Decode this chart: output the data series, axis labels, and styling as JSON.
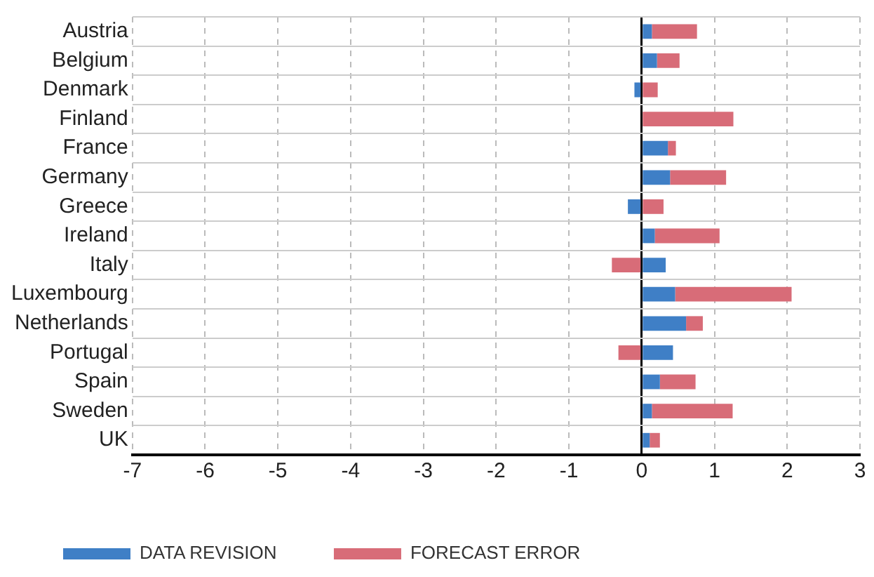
{
  "chart_data": {
    "type": "bar",
    "orientation": "horizontal",
    "stacked": true,
    "categories": [
      "Austria",
      "Belgium",
      "Denmark",
      "Finland",
      "France",
      "Germany",
      "Greece",
      "Ireland",
      "Italy",
      "Luxembourg",
      "Netherlands",
      "Portugal",
      "Spain",
      "Sweden",
      "UK"
    ],
    "series": [
      {
        "name": "DATA REVISION",
        "color": "#3f7fc6",
        "values": [
          0.14,
          0.21,
          -0.1,
          0,
          0.36,
          0.39,
          -0.19,
          0.18,
          0.33,
          0.46,
          0.61,
          0.43,
          0.25,
          0.14,
          0.11
        ]
      },
      {
        "name": "FORECAST ERROR",
        "color": "#d86c78",
        "values": [
          0.62,
          0.31,
          0.22,
          1.26,
          0.11,
          0.77,
          0.3,
          0.89,
          -0.41,
          1.6,
          0.23,
          -0.32,
          0.49,
          1.11,
          0.14
        ]
      }
    ],
    "xlim": [
      -7,
      3
    ],
    "xticks": [
      -7,
      -6,
      -5,
      -4,
      -3,
      -2,
      -1,
      0,
      1,
      2,
      3
    ],
    "grid": true,
    "legend": "bottom"
  }
}
